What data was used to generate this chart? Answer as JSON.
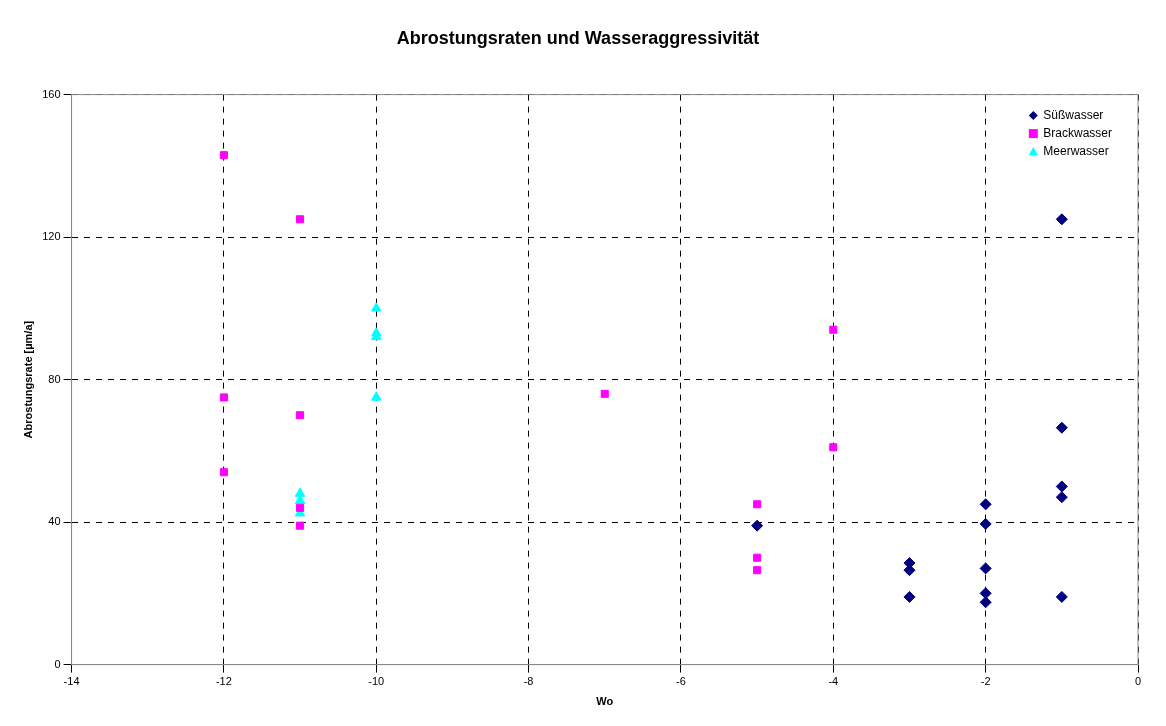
{
  "chart_data": {
    "type": "scatter",
    "title": "Abrostungsraten und Wasseraggressivität",
    "xlabel": "Wo",
    "ylabel": "Abrostungsrate [µm/a]",
    "xlim": [
      -14,
      0
    ],
    "xticks": [
      -14,
      -12,
      -10,
      -8,
      -6,
      -4,
      -2,
      0
    ],
    "ylim": [
      0,
      160
    ],
    "yticks": [
      0,
      40,
      80,
      120,
      160
    ],
    "grid": true,
    "legend": "top right",
    "series": [
      {
        "name": "Süßwasser",
        "color": "#000080",
        "marker": "diamond",
        "x": [
          -1,
          -5,
          -1,
          -1,
          -1,
          -2,
          -2,
          -3,
          -3,
          -2,
          -3,
          -2,
          -2,
          -1
        ],
        "values": [
          125,
          39,
          66.5,
          50,
          47,
          45,
          39.5,
          28.5,
          26.5,
          27,
          19,
          20,
          17.5,
          19
        ]
      },
      {
        "name": "Brackwasser",
        "color": "#ff00ff",
        "marker": "square",
        "x": [
          -12,
          -12,
          -12,
          -11,
          -11,
          -11,
          -11,
          -7,
          -5,
          -5,
          -5,
          -4,
          -4
        ],
        "values": [
          143,
          75,
          54,
          125,
          70,
          44,
          39,
          76,
          45,
          30,
          26.5,
          94,
          61
        ]
      },
      {
        "name": "Meerwasser",
        "color": "#00ffff",
        "marker": "triangle",
        "x": [
          -10,
          -10,
          -10,
          -10,
          -11,
          -11,
          -11
        ],
        "values": [
          100,
          93,
          92,
          75,
          48,
          46,
          42.5
        ]
      }
    ]
  }
}
